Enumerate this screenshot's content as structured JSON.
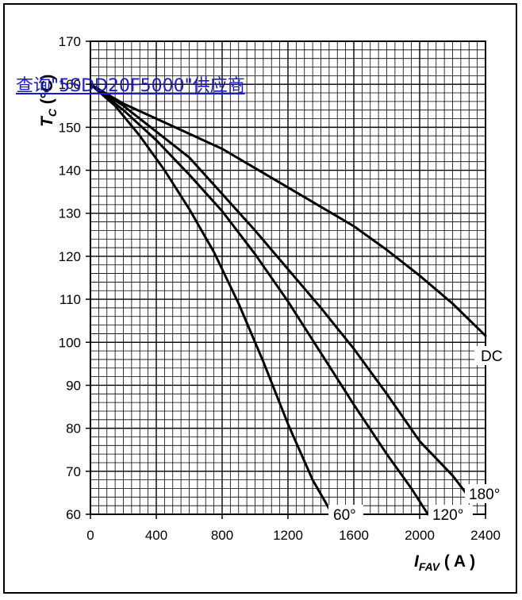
{
  "link": {
    "text": "查询\"5SDD20F5000\"供应商"
  },
  "chart_data": {
    "type": "line",
    "xlabel": {
      "main": "I",
      "sub": "FAV",
      "unit": " ( A )"
    },
    "ylabel": {
      "main": "T",
      "sub": "C",
      "unit": "(°C)"
    },
    "xlim": [
      0,
      2400
    ],
    "ylim": [
      60,
      170
    ],
    "xticks": [
      0,
      400,
      800,
      1200,
      1600,
      2000,
      2400
    ],
    "yticks": [
      60,
      70,
      80,
      90,
      100,
      110,
      120,
      130,
      140,
      150,
      160,
      170
    ],
    "grid": true,
    "series": [
      {
        "name": "DC",
        "x": [
          0,
          200,
          400,
          600,
          800,
          1000,
          1200,
          1400,
          1600,
          1800,
          2000,
          2200,
          2400
        ],
        "y": [
          160,
          155.5,
          152,
          148.5,
          145,
          140.5,
          136,
          131.5,
          127,
          121.5,
          115.5,
          109,
          101.5
        ]
      },
      {
        "name": "180°",
        "x": [
          0,
          200,
          400,
          600,
          800,
          1000,
          1200,
          1400,
          1600,
          1800,
          2000,
          2200,
          2280
        ],
        "y": [
          160,
          155,
          149,
          143,
          134.5,
          126,
          117,
          108,
          98.5,
          88,
          77,
          69,
          65
        ]
      },
      {
        "name": "120°",
        "x": [
          0,
          200,
          400,
          600,
          800,
          1000,
          1200,
          1400,
          1600,
          1800,
          1950,
          2050
        ],
        "y": [
          160,
          154,
          147,
          139,
          130.5,
          120.5,
          109.5,
          97.5,
          85.5,
          74,
          66,
          60
        ]
      },
      {
        "name": "60°",
        "x": [
          0,
          150,
          300,
          450,
          600,
          750,
          900,
          1050,
          1200,
          1350,
          1470
        ],
        "y": [
          160,
          155,
          148,
          140,
          131,
          121,
          109,
          95.5,
          81,
          68,
          60
        ]
      }
    ]
  }
}
